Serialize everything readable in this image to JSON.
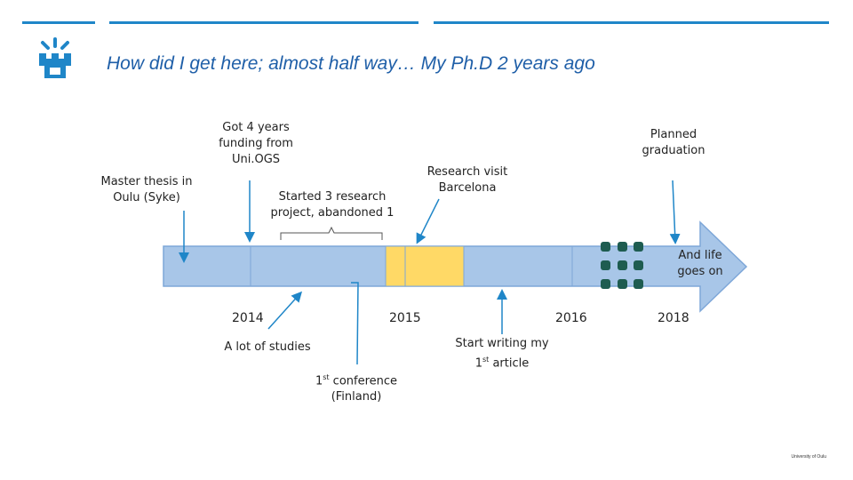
{
  "title": "How did I get here; almost half way… My Ph.D 2 years ago",
  "footer": "University of Oulu",
  "events": {
    "master_thesis": "Master thesis in Oulu (Syke)",
    "funding": "Got 4 years funding from Uni.OGS",
    "started_projects": "Started 3 research project, abandoned 1",
    "research_visit": "Research visit Barcelona",
    "planned_graduation": "Planned graduation",
    "life_goes_on": "And life goes on",
    "studies": "A lot of studies",
    "conference_sup": "st",
    "conference_num": "1",
    "conference_rest": " conference",
    "conference_place": "(Finland)",
    "writing_line1": "Start writing my",
    "writing_num": "1",
    "writing_sup": "st",
    "writing_rest": " article"
  },
  "years": [
    "2014",
    "2015",
    "2016",
    "2018"
  ],
  "colors": {
    "bar_fill": "#a8c6e8",
    "bar_stroke": "#7ea7d8",
    "highlight": "#ffd966",
    "dots": "#1e5c50",
    "accent": "#1f86c8",
    "title": "#1f5fa8"
  }
}
